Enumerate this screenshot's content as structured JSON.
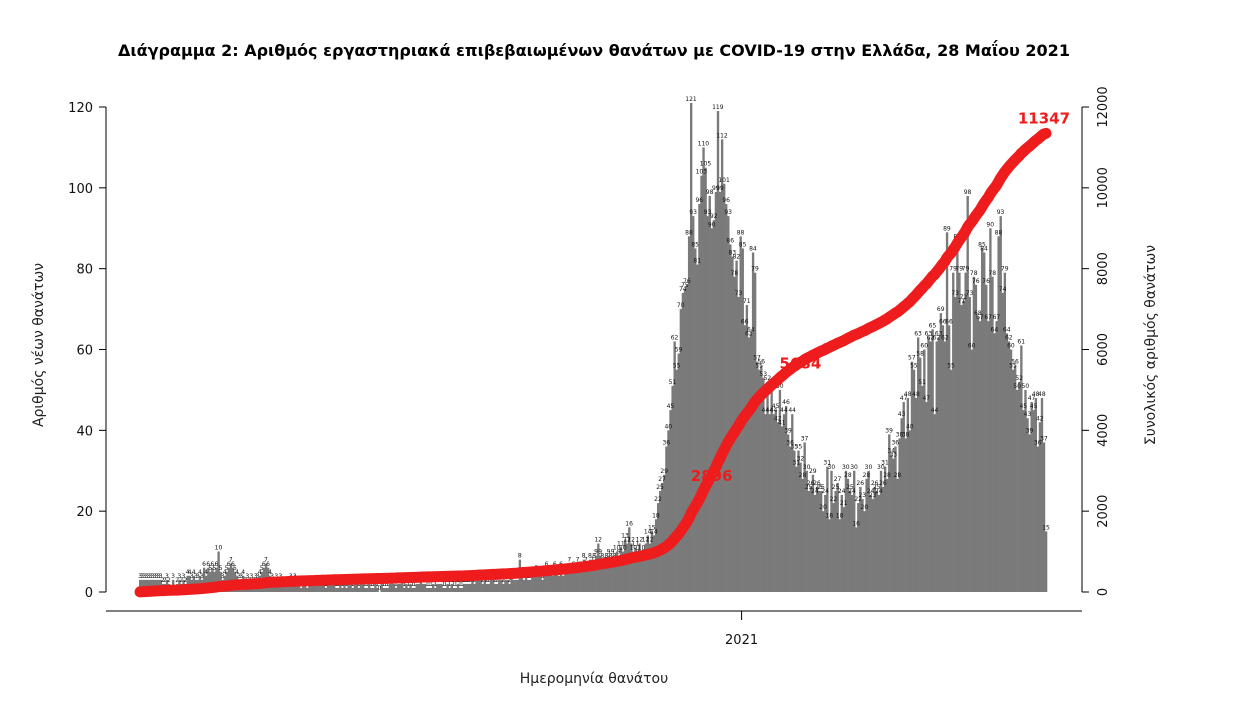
{
  "chart_data": {
    "type": "bar+line",
    "title": "Διάγραμμα 2: Αριθμός εργαστηριακά επιβεβαιωμένων θανάτων με COVID-19 στην Ελλάδα, 28 Μαΐου 2021",
    "xlabel": "Ημερομηνία θανάτου",
    "ylabel_left": "Αριθμός νέων θανάτων",
    "ylabel_right": "Συνολικός αριθμός θανάτων",
    "x_tick_labels": [
      {
        "label": "2021",
        "day": 292
      }
    ],
    "ylim_left": [
      0,
      120
    ],
    "yticks_left": [
      0,
      20,
      40,
      60,
      80,
      100,
      120
    ],
    "ylim_right": [
      0,
      12000
    ],
    "yticks_right": [
      0,
      2000,
      4000,
      6000,
      8000,
      10000,
      12000
    ],
    "grid": false,
    "bar_color": "#7a7a7a",
    "line_color": "#ee1c1c",
    "daily_deaths": [
      3,
      3,
      3,
      3,
      3,
      3,
      3,
      3,
      3,
      3,
      3,
      2,
      2,
      3,
      2,
      0,
      3,
      0,
      2,
      3,
      2,
      3,
      2,
      4,
      4,
      3,
      4,
      3,
      3,
      4,
      3,
      6,
      4,
      6,
      5,
      6,
      5,
      6,
      10,
      5,
      3,
      4,
      5,
      6,
      7,
      6,
      5,
      4,
      3,
      3,
      4,
      2,
      3,
      2,
      3,
      2,
      3,
      3,
      4,
      5,
      6,
      7,
      6,
      4,
      3,
      2,
      3,
      2,
      3,
      2,
      2,
      2,
      2,
      3,
      2,
      3,
      2,
      2,
      1,
      2,
      2,
      1,
      2,
      2,
      2,
      2,
      2,
      2,
      2,
      2,
      1,
      2,
      2,
      2,
      2,
      1,
      1,
      2,
      1,
      2,
      1,
      2,
      2,
      1,
      2,
      2,
      1,
      2,
      2,
      1,
      1,
      2,
      1,
      1,
      2,
      1,
      0,
      2,
      1,
      1,
      1,
      2,
      3,
      2,
      1,
      2,
      2,
      3,
      1,
      2,
      1,
      2,
      1,
      1,
      2,
      2,
      3,
      2,
      2,
      1,
      1,
      1,
      2,
      1,
      2,
      2,
      2,
      1,
      1,
      2,
      1,
      2,
      1,
      1,
      2,
      1,
      1,
      2,
      2,
      2,
      2,
      3,
      2,
      3,
      4,
      3,
      2,
      3,
      2,
      2,
      3,
      3,
      2,
      2,
      3,
      3,
      2,
      3,
      3,
      2,
      4,
      3,
      3,
      3,
      8,
      4,
      3,
      4,
      3,
      3,
      4,
      4,
      5,
      4,
      4,
      3,
      5,
      6,
      4,
      5,
      4,
      6,
      5,
      4,
      6,
      4,
      5,
      5,
      7,
      5,
      6,
      5,
      7,
      6,
      5,
      8,
      7,
      6,
      8,
      7,
      8,
      9,
      12,
      9,
      8,
      7,
      8,
      9,
      8,
      9,
      8,
      10,
      9,
      11,
      10,
      13,
      12,
      16,
      12,
      10,
      11,
      9,
      12,
      10,
      9,
      12,
      14,
      12,
      15,
      14,
      18,
      22,
      25,
      27,
      29,
      36,
      40,
      45,
      51,
      62,
      55,
      59,
      70,
      74,
      75,
      76,
      88,
      121,
      93,
      85,
      81,
      96,
      103,
      110,
      105,
      93,
      98,
      90,
      92,
      99,
      119,
      99,
      112,
      101,
      96,
      93,
      86,
      83,
      78,
      82,
      73,
      88,
      85,
      66,
      71,
      63,
      64,
      84,
      79,
      57,
      55,
      56,
      53,
      44,
      52,
      44,
      50,
      44,
      45,
      42,
      50,
      41,
      44,
      46,
      39,
      36,
      44,
      35,
      31,
      35,
      32,
      28,
      37,
      30,
      25,
      26,
      29,
      24,
      26,
      25,
      25,
      20,
      24,
      31,
      18,
      30,
      22,
      25,
      27,
      18,
      24,
      21,
      30,
      28,
      25,
      24,
      30,
      16,
      22,
      26,
      23,
      20,
      28,
      30,
      24,
      23,
      26,
      25,
      24,
      30,
      26,
      31,
      28,
      39,
      34,
      33,
      36,
      28,
      38,
      43,
      47,
      38,
      48,
      40,
      57,
      55,
      48,
      63,
      58,
      51,
      60,
      47,
      63,
      62,
      65,
      44,
      62,
      63,
      69,
      66,
      62,
      89,
      66,
      55,
      79,
      73,
      87,
      79,
      71,
      72,
      79,
      98,
      73,
      60,
      78,
      76,
      68,
      67,
      85,
      84,
      76,
      67,
      90,
      78,
      64,
      67,
      88,
      93,
      74,
      79,
      64,
      62,
      60,
      55,
      56,
      50,
      52,
      61,
      45,
      50,
      43,
      39,
      47,
      45,
      48,
      36,
      42,
      48,
      37,
      15
    ]
  }
}
